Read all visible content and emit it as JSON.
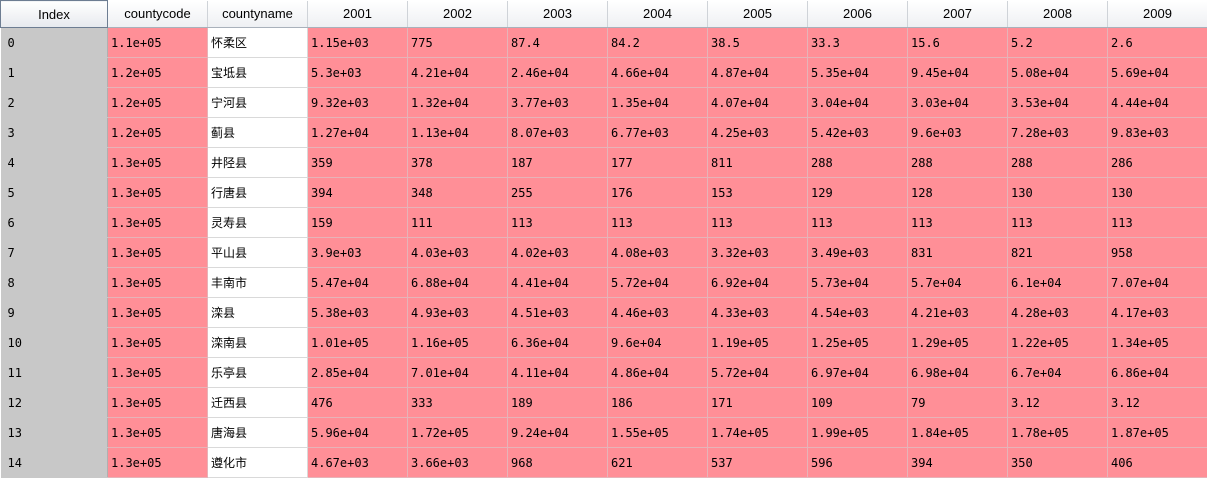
{
  "columns": [
    "Index",
    "countycode",
    "countyname",
    "2001",
    "2002",
    "2003",
    "2004",
    "2005",
    "2006",
    "2007",
    "2008",
    "2009"
  ],
  "rows": [
    {
      "index": "0",
      "countycode": "1.1e+05",
      "countyname": "怀柔区",
      "values": [
        "1.15e+03",
        "775",
        "87.4",
        "84.2",
        "38.5",
        "33.3",
        "15.6",
        "5.2",
        "2.6"
      ]
    },
    {
      "index": "1",
      "countycode": "1.2e+05",
      "countyname": "宝坻县",
      "values": [
        "5.3e+03",
        "4.21e+04",
        "2.46e+04",
        "4.66e+04",
        "4.87e+04",
        "5.35e+04",
        "9.45e+04",
        "5.08e+04",
        "5.69e+04"
      ]
    },
    {
      "index": "2",
      "countycode": "1.2e+05",
      "countyname": "宁河县",
      "values": [
        "9.32e+03",
        "1.32e+04",
        "3.77e+03",
        "1.35e+04",
        "4.07e+04",
        "3.04e+04",
        "3.03e+04",
        "3.53e+04",
        "4.44e+04"
      ]
    },
    {
      "index": "3",
      "countycode": "1.2e+05",
      "countyname": "蓟县",
      "values": [
        "1.27e+04",
        "1.13e+04",
        "8.07e+03",
        "6.77e+03",
        "4.25e+03",
        "5.42e+03",
        "9.6e+03",
        "7.28e+03",
        "9.83e+03"
      ]
    },
    {
      "index": "4",
      "countycode": "1.3e+05",
      "countyname": "井陉县",
      "values": [
        "359",
        "378",
        "187",
        "177",
        "811",
        "288",
        "288",
        "288",
        "286"
      ]
    },
    {
      "index": "5",
      "countycode": "1.3e+05",
      "countyname": "行唐县",
      "values": [
        "394",
        "348",
        "255",
        "176",
        "153",
        "129",
        "128",
        "130",
        "130"
      ]
    },
    {
      "index": "6",
      "countycode": "1.3e+05",
      "countyname": "灵寿县",
      "values": [
        "159",
        "111",
        "113",
        "113",
        "113",
        "113",
        "113",
        "113",
        "113"
      ]
    },
    {
      "index": "7",
      "countycode": "1.3e+05",
      "countyname": "平山县",
      "values": [
        "3.9e+03",
        "4.03e+03",
        "4.02e+03",
        "4.08e+03",
        "3.32e+03",
        "3.49e+03",
        "831",
        "821",
        "958"
      ]
    },
    {
      "index": "8",
      "countycode": "1.3e+05",
      "countyname": "丰南市",
      "values": [
        "5.47e+04",
        "6.88e+04",
        "4.41e+04",
        "5.72e+04",
        "6.92e+04",
        "5.73e+04",
        "5.7e+04",
        "6.1e+04",
        "7.07e+04"
      ]
    },
    {
      "index": "9",
      "countycode": "1.3e+05",
      "countyname": "滦县",
      "values": [
        "5.38e+03",
        "4.93e+03",
        "4.51e+03",
        "4.46e+03",
        "4.33e+03",
        "4.54e+03",
        "4.21e+03",
        "4.28e+03",
        "4.17e+03"
      ]
    },
    {
      "index": "10",
      "countycode": "1.3e+05",
      "countyname": "滦南县",
      "values": [
        "1.01e+05",
        "1.16e+05",
        "6.36e+04",
        "9.6e+04",
        "1.19e+05",
        "1.25e+05",
        "1.29e+05",
        "1.22e+05",
        "1.34e+05"
      ]
    },
    {
      "index": "11",
      "countycode": "1.3e+05",
      "countyname": "乐亭县",
      "values": [
        "2.85e+04",
        "7.01e+04",
        "4.11e+04",
        "4.86e+04",
        "5.72e+04",
        "6.97e+04",
        "6.98e+04",
        "6.7e+04",
        "6.86e+04"
      ]
    },
    {
      "index": "12",
      "countycode": "1.3e+05",
      "countyname": "迁西县",
      "values": [
        "476",
        "333",
        "189",
        "186",
        "171",
        "109",
        "79",
        "3.12",
        "3.12"
      ]
    },
    {
      "index": "13",
      "countycode": "1.3e+05",
      "countyname": "唐海县",
      "values": [
        "5.96e+04",
        "1.72e+05",
        "9.24e+04",
        "1.55e+05",
        "1.74e+05",
        "1.99e+05",
        "1.84e+05",
        "1.78e+05",
        "1.87e+05"
      ]
    },
    {
      "index": "14",
      "countycode": "1.3e+05",
      "countyname": "遵化市",
      "values": [
        "4.67e+03",
        "3.66e+03",
        "968",
        "621",
        "537",
        "596",
        "394",
        "350",
        "406"
      ]
    }
  ],
  "colors": {
    "value_cell": "#ff8f97",
    "index_cell": "#c8c8c8",
    "name_cell": "#ffffff"
  }
}
